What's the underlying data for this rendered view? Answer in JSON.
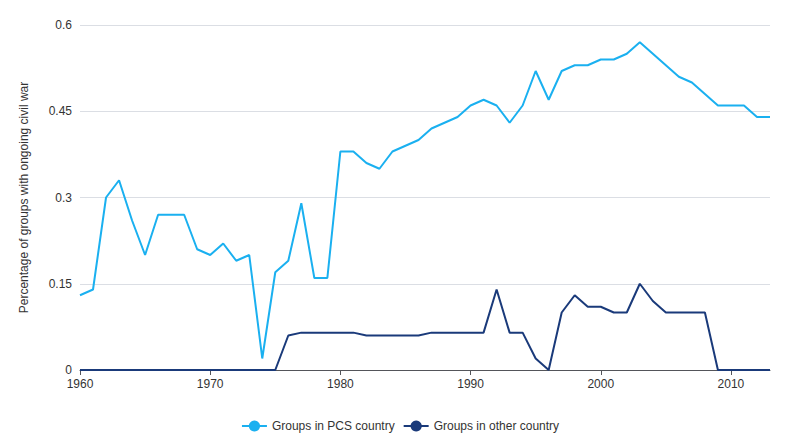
{
  "chart_data": {
    "type": "line",
    "ylabel": "Percentage of groups with ongoing civil war",
    "x": [
      1960,
      1961,
      1962,
      1963,
      1964,
      1965,
      1966,
      1967,
      1968,
      1969,
      1970,
      1971,
      1972,
      1973,
      1974,
      1975,
      1976,
      1977,
      1978,
      1979,
      1980,
      1981,
      1982,
      1983,
      1984,
      1985,
      1986,
      1987,
      1988,
      1989,
      1990,
      1991,
      1992,
      1993,
      1994,
      1995,
      1996,
      1997,
      1998,
      1999,
      2000,
      2001,
      2002,
      2003,
      2004,
      2005,
      2006,
      2007,
      2008,
      2009,
      2010,
      2011,
      2012,
      2013
    ],
    "series": [
      {
        "name": "Groups in PCS country",
        "color": "#1ab0f0",
        "values": [
          0.13,
          0.14,
          0.3,
          0.33,
          0.26,
          0.2,
          0.27,
          0.27,
          0.27,
          0.21,
          0.2,
          0.22,
          0.19,
          0.2,
          0.02,
          0.17,
          0.19,
          0.29,
          0.16,
          0.16,
          0.38,
          0.38,
          0.36,
          0.35,
          0.38,
          0.39,
          0.4,
          0.42,
          0.43,
          0.44,
          0.46,
          0.47,
          0.46,
          0.43,
          0.46,
          0.52,
          0.47,
          0.52,
          0.53,
          0.53,
          0.54,
          0.54,
          0.55,
          0.57,
          0.55,
          0.53,
          0.51,
          0.5,
          0.48,
          0.46,
          0.46,
          0.46,
          0.44,
          0.44
        ]
      },
      {
        "name": "Groups in other country",
        "color": "#1a3a7a",
        "values": [
          0.0,
          0.0,
          0.0,
          0.0,
          0.0,
          0.0,
          0.0,
          0.0,
          0.0,
          0.0,
          0.0,
          0.0,
          0.0,
          0.0,
          0.0,
          0.0,
          0.06,
          0.065,
          0.065,
          0.065,
          0.065,
          0.065,
          0.06,
          0.06,
          0.06,
          0.06,
          0.06,
          0.065,
          0.065,
          0.065,
          0.065,
          0.065,
          0.14,
          0.065,
          0.065,
          0.02,
          0.0,
          0.1,
          0.13,
          0.11,
          0.11,
          0.1,
          0.1,
          0.15,
          0.12,
          0.1,
          0.1,
          0.1,
          0.1,
          0.0,
          0.0,
          0.0,
          0.0,
          0.0
        ]
      }
    ],
    "xlim": [
      1960,
      2013
    ],
    "xticks": [
      1960,
      1970,
      1980,
      1990,
      2000,
      2010
    ],
    "ylim": [
      0,
      0.6
    ],
    "yticks": [
      0,
      0.15,
      0.3,
      0.45,
      0.6
    ],
    "grid": true,
    "legend": "bottom"
  }
}
